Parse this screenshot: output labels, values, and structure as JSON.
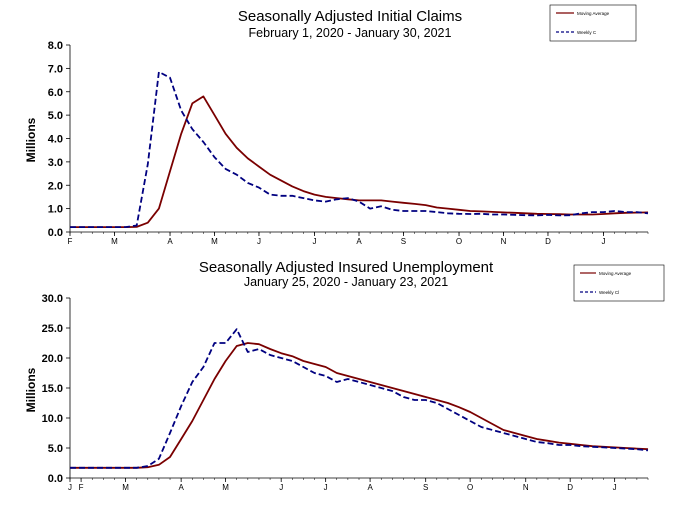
{
  "chart_data": [
    {
      "type": "line",
      "title": "Seasonally Adjusted Initial Claims",
      "subtitle": "February 1, 2020 - January 30, 2021",
      "ylabel": "Millions",
      "ylim": [
        0,
        8
      ],
      "yticks": [
        "0.0",
        "1.0",
        "2.0",
        "3.0",
        "4.0",
        "5.0",
        "6.0",
        "7.0",
        "8.0"
      ],
      "xticks": [
        {
          "label": "F",
          "week": 0
        },
        {
          "label": "M",
          "week": 4
        },
        {
          "label": "A",
          "week": 9
        },
        {
          "label": "M",
          "week": 13
        },
        {
          "label": "J",
          "week": 17
        },
        {
          "label": "J",
          "week": 22
        },
        {
          "label": "A",
          "week": 26
        },
        {
          "label": "S",
          "week": 30
        },
        {
          "label": "O",
          "week": 35
        },
        {
          "label": "N",
          "week": 39
        },
        {
          "label": "D",
          "week": 43
        },
        {
          "label": "J",
          "week": 48
        }
      ],
      "weeks": 53,
      "legend": [
        "Moving Average",
        "Weekly C"
      ],
      "series": [
        {
          "name": "Moving Average",
          "color": "#7a0000",
          "dash": "solid",
          "values": [
            0.21,
            0.21,
            0.21,
            0.21,
            0.21,
            0.21,
            0.22,
            0.4,
            1.0,
            2.6,
            4.2,
            5.5,
            5.8,
            5.0,
            4.2,
            3.6,
            3.15,
            2.8,
            2.45,
            2.2,
            1.95,
            1.75,
            1.6,
            1.5,
            1.45,
            1.4,
            1.35,
            1.35,
            1.35,
            1.3,
            1.25,
            1.2,
            1.15,
            1.05,
            1.0,
            0.95,
            0.9,
            0.88,
            0.86,
            0.84,
            0.82,
            0.8,
            0.78,
            0.77,
            0.76,
            0.75,
            0.75,
            0.75,
            0.77,
            0.8,
            0.82,
            0.83,
            0.84
          ]
        },
        {
          "name": "Weekly C",
          "color": "#000080",
          "dash": "dashed",
          "values": [
            0.21,
            0.21,
            0.21,
            0.21,
            0.21,
            0.21,
            0.28,
            2.9,
            6.85,
            6.6,
            5.2,
            4.4,
            3.85,
            3.2,
            2.7,
            2.45,
            2.1,
            1.9,
            1.6,
            1.55,
            1.55,
            1.45,
            1.35,
            1.3,
            1.4,
            1.45,
            1.3,
            1.0,
            1.1,
            0.95,
            0.9,
            0.9,
            0.9,
            0.85,
            0.8,
            0.78,
            0.77,
            0.78,
            0.75,
            0.75,
            0.73,
            0.72,
            0.71,
            0.73,
            0.71,
            0.72,
            0.8,
            0.85,
            0.85,
            0.9,
            0.85,
            0.85,
            0.8
          ]
        }
      ]
    },
    {
      "type": "line",
      "title": "Seasonally Adjusted Insured Unemployment",
      "subtitle": "January 25, 2020 - January 23, 2021",
      "ylabel": "Millions",
      "ylim": [
        0,
        30
      ],
      "yticks": [
        "0.0",
        "5.0",
        "10.0",
        "15.0",
        "20.0",
        "25.0",
        "30.0"
      ],
      "xticks": [
        {
          "label": "J",
          "week": 0
        },
        {
          "label": "F",
          "week": 1
        },
        {
          "label": "M",
          "week": 5
        },
        {
          "label": "A",
          "week": 10
        },
        {
          "label": "M",
          "week": 14
        },
        {
          "label": "J",
          "week": 19
        },
        {
          "label": "J",
          "week": 23
        },
        {
          "label": "A",
          "week": 27
        },
        {
          "label": "S",
          "week": 32
        },
        {
          "label": "O",
          "week": 36
        },
        {
          "label": "N",
          "week": 41
        },
        {
          "label": "D",
          "week": 45
        },
        {
          "label": "J",
          "week": 49
        }
      ],
      "weeks": 53,
      "legend": [
        "Moving Average",
        "Weekly Cl"
      ],
      "series": [
        {
          "name": "Moving Average",
          "color": "#7a0000",
          "dash": "solid",
          "values": [
            1.7,
            1.7,
            1.7,
            1.7,
            1.7,
            1.7,
            1.7,
            1.8,
            2.2,
            3.5,
            6.5,
            9.5,
            13.0,
            16.5,
            19.5,
            22.0,
            22.5,
            22.3,
            21.5,
            20.8,
            20.3,
            19.5,
            19.0,
            18.5,
            17.5,
            17.0,
            16.5,
            16.0,
            15.5,
            15.0,
            14.5,
            14.0,
            13.5,
            13.0,
            12.5,
            11.8,
            11.0,
            10.0,
            9.0,
            8.0,
            7.5,
            7.0,
            6.5,
            6.2,
            5.9,
            5.7,
            5.5,
            5.3,
            5.2,
            5.1,
            5.0,
            4.9,
            4.8
          ]
        },
        {
          "name": "Weekly Cl",
          "color": "#000080",
          "dash": "dashed",
          "values": [
            1.7,
            1.7,
            1.7,
            1.7,
            1.7,
            1.7,
            1.7,
            2.0,
            3.2,
            7.5,
            12.0,
            16.0,
            18.5,
            22.5,
            22.5,
            24.8,
            21.0,
            21.5,
            20.5,
            20.0,
            19.5,
            18.5,
            17.5,
            17.0,
            16.0,
            16.5,
            16.0,
            15.5,
            15.0,
            14.5,
            13.5,
            13.0,
            13.0,
            12.5,
            11.5,
            10.5,
            9.5,
            8.5,
            8.0,
            7.5,
            7.0,
            6.5,
            6.0,
            5.8,
            5.5,
            5.5,
            5.3,
            5.2,
            5.1,
            5.0,
            4.9,
            4.8,
            4.6
          ]
        }
      ]
    }
  ]
}
